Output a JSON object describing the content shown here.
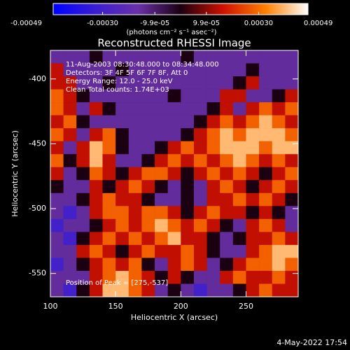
{
  "chart_data": {
    "type": "heatmap",
    "title": "Reconstructed RHESSI Image",
    "xlabel": "Heliocentric X (arcsec)",
    "ylabel": "Heliocentric Y (arcsec)",
    "colorbar_label": "(photons cm⁻² s⁻¹ asec⁻²)",
    "annotations": [
      "11-Aug-2003 08:30:48.000 to 08:34:48.000",
      "Detectors: 3F 4F 5F 6F 7F 8F, Att 0",
      "Energy Range: 12.0 - 25.0 keV",
      "Clean     Total counts: 1.74E+03"
    ],
    "peak_label": "Position of Peak = [275,-537]",
    "timestamp": "4-May-2022 17:54",
    "xlim": [
      100,
      290
    ],
    "ylim": [
      -568,
      -378
    ],
    "xticks": [
      100,
      150,
      200,
      250
    ],
    "yticks": [
      -400,
      -450,
      -500,
      -550
    ],
    "clim": [
      -0.00049,
      0.00049
    ],
    "cticks": [
      {
        "value": -0.00049,
        "label": "-0.00049"
      },
      {
        "value": -0.0003,
        "label": "-0.00030"
      },
      {
        "value": -9.9e-05,
        "label": "-9.9e-05"
      },
      {
        "value": 9.9e-05,
        "label": "9.9e-05"
      },
      {
        "value": 0.0003,
        "label": "0.00030"
      },
      {
        "value": 0.00049,
        "label": "0.00049"
      }
    ],
    "colormap": [
      "#0000ff",
      "#3a1ed2",
      "#6a30a8",
      "#1a0010",
      "#d01000",
      "#ff8000",
      "#ffffff"
    ],
    "x": [
      105,
      115,
      125,
      135,
      145,
      155,
      165,
      175,
      185,
      195,
      205,
      215,
      225,
      235,
      245,
      255,
      265,
      275,
      285
    ],
    "y": [
      -383,
      -393,
      -403,
      -413,
      -423,
      -433,
      -443,
      -453,
      -463,
      -473,
      -483,
      -493,
      -503,
      -513,
      -523,
      -533,
      -543,
      -553,
      -563
    ],
    "z": [
      [
        -0.00015,
        -0.00015,
        -0.00015,
        0,
        -0.00015,
        -0.00015,
        -0.00015,
        -0.00015,
        -0.00015,
        -0.00015,
        0,
        -0.00015,
        -0.00015,
        -0.00015,
        -0.00015,
        -0.00015,
        -0.00015,
        -0.00015,
        -0.00015
      ],
      [
        0.00015,
        -0.00015,
        -0.00015,
        -0.00015,
        -0.00015,
        0,
        -0.00015,
        -0.00015,
        -0.00015,
        -0.00015,
        -0.00015,
        -0.00015,
        -0.00015,
        -0.00015,
        -0.00015,
        0,
        -0.00015,
        -0.00015,
        -0.00015
      ],
      [
        0.00015,
        0.00015,
        -0.00015,
        -0.00015,
        0,
        -0.00015,
        -0.00015,
        -0.00015,
        -0.00015,
        -0.00015,
        -0.00015,
        -0.00015,
        -0.00015,
        -0.00015,
        0,
        0.00015,
        -0.00015,
        -0.00015,
        -0.00015
      ],
      [
        0.00028,
        0.00015,
        0,
        -0.00015,
        -0.00015,
        -0.00015,
        -0.00015,
        -0.00015,
        -0.00015,
        0,
        -0.00015,
        -0.00015,
        -0.00015,
        0.00015,
        0.00015,
        -0.00015,
        -0.00015,
        0,
        0.00015
      ],
      [
        0.00028,
        0.00015,
        -0.00015,
        0.00015,
        0,
        -0.00015,
        -0.00015,
        -0.00015,
        -0.00015,
        -0.00015,
        -0.00015,
        -0.00015,
        0,
        0.00015,
        -0.00015,
        0.00015,
        0.00028,
        0.00015,
        0.00028
      ],
      [
        0.00015,
        0.00028,
        0,
        -0.00015,
        -0.00015,
        -0.00015,
        -0.00015,
        -0.00015,
        -0.00015,
        -0.00015,
        -0.00015,
        0,
        0.00015,
        0.00028,
        0.00015,
        0.00028,
        0.0004,
        0.00028,
        0.00015
      ],
      [
        0.00028,
        0.00015,
        -0.00015,
        0.00015,
        0.00028,
        0,
        -0.00015,
        -0.00015,
        -0.00015,
        -0.00015,
        0,
        0.00015,
        0.00028,
        0.0004,
        0.00028,
        0.0004,
        0.0004,
        0.0004,
        0.00028
      ],
      [
        0.00015,
        -0.00015,
        0.00015,
        0.0004,
        0.00028,
        0,
        -0.00015,
        -0.00015,
        0,
        0.00015,
        0.00028,
        0.00015,
        0.00028,
        0.0004,
        0.0004,
        0.0004,
        0.00028,
        0.0004,
        0.0004
      ],
      [
        0.00028,
        0,
        0.00015,
        0.0004,
        0.00015,
        -0.00015,
        -0.00015,
        0,
        0.00015,
        0.00028,
        0.00015,
        0.00028,
        0.00015,
        0.00028,
        0.0004,
        0.00028,
        0.00015,
        0.00028,
        0.00015
      ],
      [
        0.00015,
        -0.00015,
        0,
        0.00028,
        0.00015,
        0,
        0.00015,
        0.00028,
        0.00028,
        0.00015,
        0,
        0.00015,
        0.00028,
        0.00015,
        0.00028,
        0.00015,
        0,
        0.00015,
        0.00028
      ],
      [
        0,
        -0.00015,
        -0.00015,
        0.00015,
        0,
        0.00015,
        0.00028,
        0.00015,
        0,
        -0.00015,
        0,
        -0.00015,
        0.00015,
        0.00028,
        0.00015,
        0,
        0.00015,
        0.00028,
        0.00015
      ],
      [
        -0.00015,
        -0.00015,
        0,
        0.00015,
        0.00028,
        0.00015,
        0.00015,
        0,
        -0.00015,
        -0.00015,
        0,
        -0.00015,
        0.00015,
        0.00015,
        0.00028,
        0.00015,
        0.00028,
        0.00015,
        0
      ],
      [
        -0.00015,
        -0.0003,
        -0.00015,
        0.00015,
        0.00028,
        0.00028,
        0.00015,
        0.00028,
        0.00028,
        0.00015,
        0,
        0.00015,
        0.00028,
        0.00015,
        0.00015,
        0,
        0.00015,
        0,
        -0.00015
      ],
      [
        -0.0003,
        -0.00015,
        -0.00015,
        0,
        0.00015,
        0.00028,
        0.00015,
        0.00028,
        0.0004,
        0.00028,
        0.00015,
        0.00028,
        0.00015,
        0,
        -0.00015,
        0.00015,
        0.00028,
        0.00015,
        -0.00015
      ],
      [
        -0.00015,
        -0.0003,
        0,
        0.00015,
        0.00028,
        0.00015,
        0.00028,
        0.00015,
        0.00028,
        0.0004,
        0.00015,
        0.00015,
        0,
        -0.00015,
        0,
        0.00015,
        0.00015,
        0.00028,
        0.00015
      ],
      [
        -0.00015,
        -0.00015,
        0.00015,
        0.00028,
        0.00015,
        0,
        0.00015,
        0.00028,
        0.00015,
        0.00015,
        0.00028,
        0.00015,
        0,
        -0.00015,
        -0.00015,
        0.00015,
        0.00028,
        0.0004,
        0.0004
      ],
      [
        -0.0003,
        -0.00015,
        0,
        0.00015,
        0.00028,
        0.00015,
        0.00028,
        0,
        -0.00015,
        0.00015,
        0.00028,
        0.00015,
        -0.00015,
        0,
        0.00015,
        0.00028,
        0.00028,
        0.0004,
        0.00028
      ],
      [
        -0.00015,
        -0.00015,
        -0.00015,
        0.00015,
        0.00028,
        0.0004,
        0.00028,
        0.00015,
        0,
        0.00015,
        0,
        -0.00015,
        -0.00015,
        0.00015,
        0.00028,
        0.00015,
        0.00015,
        0.00028,
        0.00015
      ],
      [
        -0.00015,
        -0.0003,
        0,
        0.00015,
        0.0004,
        0.0004,
        0.00028,
        0.00015,
        -0.00015,
        0,
        -0.00015,
        -0.0003,
        -0.00015,
        -0.00015,
        0,
        0.00015,
        0.00028,
        0.00015,
        0.00015
      ]
    ]
  }
}
